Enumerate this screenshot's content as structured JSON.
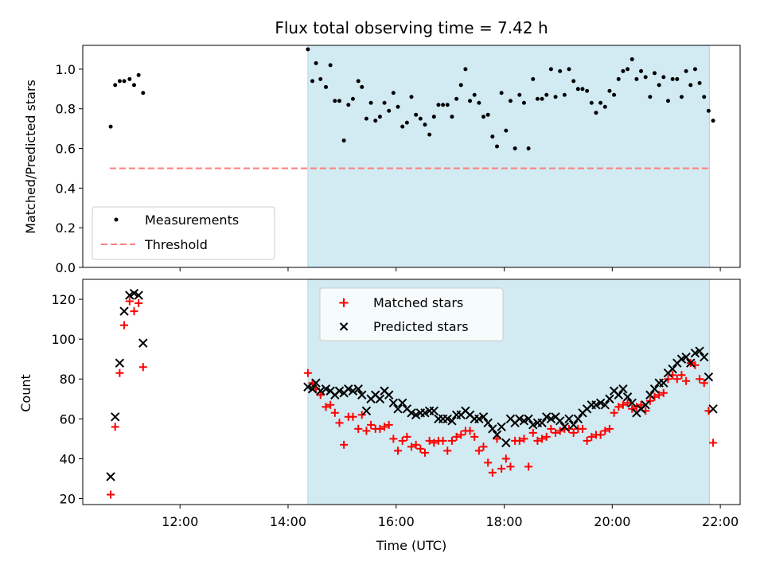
{
  "title": "Flux total observing time = 7.42 h",
  "colors": {
    "shade": "#add8e6",
    "threshold": "#ff7f7f",
    "matched": "#ff0000",
    "predicted": "#000000",
    "measurement": "#000000"
  },
  "chart_data": [
    {
      "type": "scatter",
      "ylabel": "Matched/Predicted stars",
      "xlabel": "",
      "xlim": [
        "10:12",
        "22:22"
      ],
      "ylim": [
        0,
        1.12
      ],
      "yticks": [
        "0.0",
        "0.2",
        "0.4",
        "0.6",
        "0.8",
        "1.0"
      ],
      "legend_position": "lower-left",
      "legend": [
        "Measurements",
        "Threshold"
      ],
      "shaded_interval": [
        "14:22",
        "21:48"
      ],
      "threshold": {
        "y": 0.5,
        "x_range": [
          "10:42",
          "21:48"
        ]
      },
      "series": [
        {
          "name": "Measurements",
          "x": [
            "10:43",
            "10:48",
            "10:53",
            "10:58",
            "11:04",
            "11:09",
            "11:14",
            "11:19",
            "14:22",
            "14:27",
            "14:31",
            "14:36",
            "14:42",
            "14:47",
            "14:52",
            "14:57",
            "15:02",
            "15:07",
            "15:12",
            "15:18",
            "15:22",
            "15:27",
            "15:32",
            "15:37",
            "15:42",
            "15:47",
            "15:52",
            "15:57",
            "16:02",
            "16:07",
            "16:12",
            "16:17",
            "16:22",
            "16:27",
            "16:32",
            "16:37",
            "16:42",
            "16:47",
            "16:52",
            "16:57",
            "17:02",
            "17:07",
            "17:12",
            "17:17",
            "17:22",
            "17:27",
            "17:32",
            "17:37",
            "17:42",
            "17:47",
            "17:52",
            "17:57",
            "18:02",
            "18:07",
            "18:12",
            "18:17",
            "18:22",
            "18:27",
            "18:32",
            "18:37",
            "18:42",
            "18:47",
            "18:52",
            "18:57",
            "19:02",
            "19:07",
            "19:12",
            "19:17",
            "19:22",
            "19:27",
            "19:32",
            "19:37",
            "19:42",
            "19:47",
            "19:52",
            "19:57",
            "20:02",
            "20:07",
            "20:12",
            "20:17",
            "20:22",
            "20:27",
            "20:32",
            "20:37",
            "20:42",
            "20:47",
            "20:52",
            "20:57",
            "21:02",
            "21:07",
            "21:12",
            "21:17",
            "21:22",
            "21:27",
            "21:32",
            "21:37",
            "21:42",
            "21:47",
            "21:52"
          ],
          "y": [
            0.71,
            0.92,
            0.94,
            0.94,
            0.95,
            0.92,
            0.97,
            0.88,
            1.1,
            0.94,
            1.03,
            0.95,
            0.91,
            1.02,
            0.84,
            0.84,
            0.64,
            0.82,
            0.85,
            0.94,
            0.91,
            0.75,
            0.83,
            0.74,
            0.76,
            0.83,
            0.79,
            0.88,
            0.81,
            0.71,
            0.73,
            0.86,
            0.77,
            0.75,
            0.72,
            0.67,
            0.76,
            0.82,
            0.82,
            0.82,
            0.76,
            0.85,
            0.92,
            1.0,
            0.84,
            0.87,
            0.83,
            0.76,
            0.77,
            0.66,
            0.61,
            0.88,
            0.69,
            0.84,
            0.6,
            0.87,
            0.83,
            0.6,
            0.95,
            0.85,
            0.85,
            0.87,
            1.0,
            0.86,
            0.99,
            0.87,
            1.0,
            0.94,
            0.9,
            0.9,
            0.89,
            0.83,
            0.78,
            0.83,
            0.81,
            0.89,
            0.87,
            0.95,
            0.99,
            1.0,
            1.05,
            0.95,
            0.99,
            0.96,
            0.86,
            0.98,
            0.92,
            0.96,
            0.84,
            0.95,
            0.95,
            0.86,
            0.99,
            0.92,
            1.0,
            0.93,
            0.86,
            0.79,
            0.74
          ]
        }
      ]
    },
    {
      "type": "scatter",
      "ylabel": "Count",
      "xlabel": "Time (UTC)",
      "xlim": [
        "10:12",
        "22:22"
      ],
      "ylim": [
        17,
        130
      ],
      "yticks": [
        "20",
        "40",
        "60",
        "80",
        "100",
        "120"
      ],
      "xticks": [
        "12:00",
        "14:00",
        "16:00",
        "18:00",
        "20:00",
        "22:00"
      ],
      "legend_position": "top-center",
      "legend": [
        "Matched stars",
        "Predicted stars"
      ],
      "shaded_interval": [
        "14:22",
        "21:48"
      ],
      "series": [
        {
          "name": "Matched stars",
          "x": [
            "10:43",
            "10:48",
            "10:53",
            "10:58",
            "11:04",
            "11:09",
            "11:14",
            "11:19",
            "14:22",
            "14:27",
            "14:31",
            "14:36",
            "14:42",
            "14:47",
            "14:52",
            "14:57",
            "15:02",
            "15:07",
            "15:12",
            "15:18",
            "15:22",
            "15:27",
            "15:32",
            "15:37",
            "15:42",
            "15:47",
            "15:52",
            "15:57",
            "16:02",
            "16:07",
            "16:12",
            "16:17",
            "16:22",
            "16:27",
            "16:32",
            "16:37",
            "16:42",
            "16:47",
            "16:52",
            "16:57",
            "17:02",
            "17:07",
            "17:12",
            "17:17",
            "17:22",
            "17:27",
            "17:32",
            "17:37",
            "17:42",
            "17:47",
            "17:52",
            "17:57",
            "18:02",
            "18:07",
            "18:12",
            "18:17",
            "18:22",
            "18:27",
            "18:32",
            "18:37",
            "18:42",
            "18:47",
            "18:52",
            "18:57",
            "19:02",
            "19:07",
            "19:12",
            "19:17",
            "19:22",
            "19:27",
            "19:32",
            "19:37",
            "19:42",
            "19:47",
            "19:52",
            "19:57",
            "20:02",
            "20:07",
            "20:12",
            "20:17",
            "20:22",
            "20:27",
            "20:32",
            "20:37",
            "20:42",
            "20:47",
            "20:52",
            "20:57",
            "21:02",
            "21:07",
            "21:12",
            "21:17",
            "21:22",
            "21:27",
            "21:32",
            "21:37",
            "21:42",
            "21:47",
            "21:52"
          ],
          "y": [
            22,
            56,
            83,
            107,
            119,
            114,
            118,
            86,
            83,
            78,
            75,
            72,
            66,
            67,
            63,
            58,
            47,
            61,
            61,
            55,
            62,
            54,
            57,
            55,
            55,
            56,
            57,
            50,
            44,
            49,
            51,
            46,
            47,
            45,
            43,
            49,
            48,
            49,
            49,
            44,
            49,
            51,
            52,
            54,
            54,
            51,
            44,
            46,
            38,
            33,
            50,
            35,
            40,
            36,
            49,
            49,
            50,
            36,
            53,
            49,
            50,
            51,
            55,
            53,
            54,
            55,
            55,
            53,
            55,
            55,
            49,
            51,
            52,
            52,
            54,
            55,
            63,
            66,
            67,
            68,
            65,
            66,
            67,
            64,
            69,
            71,
            72,
            73,
            80,
            82,
            80,
            82,
            79,
            88,
            87,
            80,
            78,
            64,
            48
          ]
        },
        {
          "name": "Predicted stars",
          "x": [
            "10:43",
            "10:48",
            "10:53",
            "10:58",
            "11:04",
            "11:09",
            "11:14",
            "11:19",
            "14:22",
            "14:27",
            "14:31",
            "14:36",
            "14:42",
            "14:47",
            "14:52",
            "14:57",
            "15:02",
            "15:07",
            "15:12",
            "15:18",
            "15:22",
            "15:27",
            "15:32",
            "15:37",
            "15:42",
            "15:47",
            "15:52",
            "15:57",
            "16:02",
            "16:07",
            "16:12",
            "16:17",
            "16:22",
            "16:27",
            "16:32",
            "16:37",
            "16:42",
            "16:47",
            "16:52",
            "16:57",
            "17:02",
            "17:07",
            "17:12",
            "17:17",
            "17:22",
            "17:27",
            "17:32",
            "17:37",
            "17:42",
            "17:47",
            "17:52",
            "17:57",
            "18:02",
            "18:07",
            "18:12",
            "18:17",
            "18:22",
            "18:27",
            "18:32",
            "18:37",
            "18:42",
            "18:47",
            "18:52",
            "18:57",
            "19:02",
            "19:07",
            "19:12",
            "19:17",
            "19:22",
            "19:27",
            "19:32",
            "19:37",
            "19:42",
            "19:47",
            "19:52",
            "19:57",
            "20:02",
            "20:07",
            "20:12",
            "20:17",
            "20:22",
            "20:27",
            "20:32",
            "20:37",
            "20:42",
            "20:47",
            "20:52",
            "20:57",
            "21:02",
            "21:07",
            "21:12",
            "21:17",
            "21:22",
            "21:27",
            "21:32",
            "21:37",
            "21:42",
            "21:47",
            "21:52"
          ],
          "y": [
            31,
            61,
            88,
            114,
            122,
            123,
            122,
            98,
            76,
            75,
            78,
            74,
            75,
            74,
            72,
            74,
            73,
            75,
            74,
            75,
            72,
            64,
            70,
            72,
            70,
            74,
            72,
            68,
            65,
            68,
            65,
            63,
            62,
            63,
            63,
            64,
            64,
            60,
            60,
            60,
            59,
            62,
            62,
            64,
            62,
            60,
            60,
            61,
            58,
            55,
            52,
            56,
            48,
            60,
            58,
            60,
            59,
            60,
            57,
            58,
            58,
            61,
            60,
            61,
            59,
            56,
            60,
            57,
            60,
            63,
            65,
            67,
            67,
            68,
            67,
            70,
            74,
            72,
            75,
            71,
            68,
            63,
            65,
            67,
            72,
            75,
            78,
            78,
            83,
            85,
            88,
            90,
            91,
            88,
            93,
            94,
            91,
            81,
            65
          ]
        }
      ]
    }
  ]
}
